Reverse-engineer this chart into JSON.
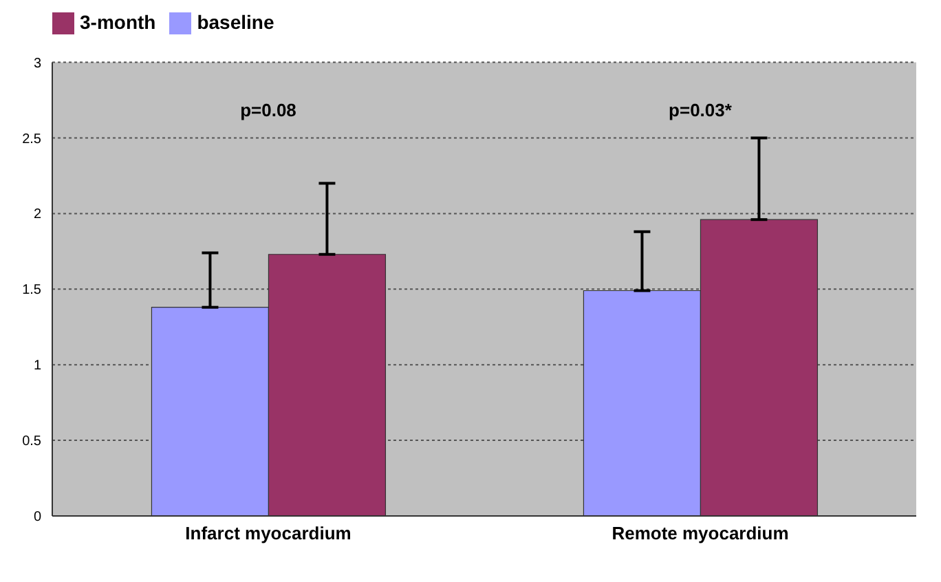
{
  "chart_data": {
    "type": "bar",
    "categories": [
      "Infarct myocardium",
      "Remote myocardium"
    ],
    "series": [
      {
        "name": "baseline",
        "color": "#9999ff",
        "values": [
          1.38,
          1.49
        ],
        "errors": [
          [
            1.38,
            1.74
          ],
          [
            1.49,
            1.88
          ]
        ]
      },
      {
        "name": "3-month",
        "color": "#993366",
        "values": [
          1.73,
          1.96
        ],
        "errors": [
          [
            1.73,
            2.2
          ],
          [
            1.96,
            2.5
          ]
        ]
      }
    ],
    "annotations": [
      "p=0.08",
      "p=0.03*"
    ],
    "ylim": [
      0,
      3
    ],
    "yticks": [
      0,
      0.5,
      1,
      1.5,
      2,
      2.5,
      3
    ],
    "grid": "y",
    "legend": "top left"
  }
}
